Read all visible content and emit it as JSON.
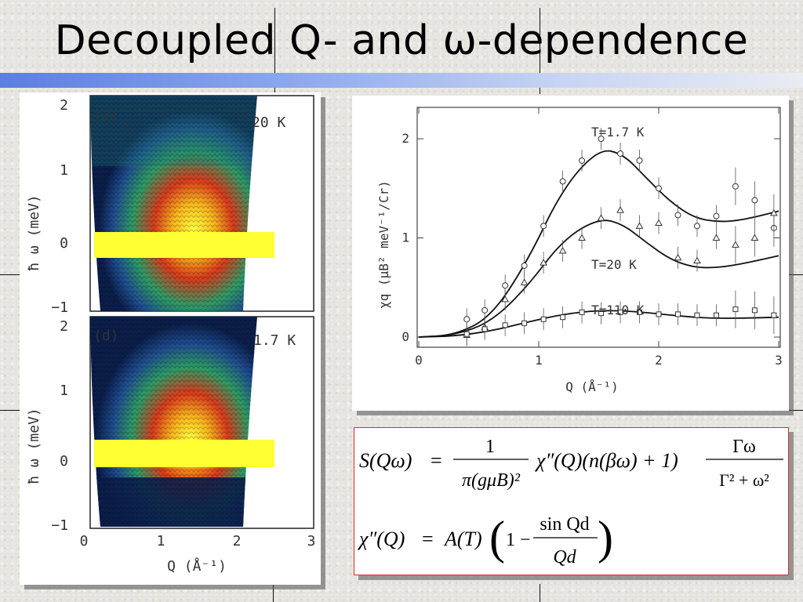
{
  "slide": {
    "title": "Decoupled Q- and ω-dependence"
  },
  "maps": {
    "panel_c": {
      "tag": "(c)",
      "temperature": "20 K"
    },
    "panel_d": {
      "tag": "(d)",
      "temperature": "1.7 K"
    },
    "y_axis_label": "ħ ω (meV)",
    "y_ticks": [
      "2",
      "1",
      "0",
      "−1"
    ],
    "x_axis_label": "Q (Å⁻¹)",
    "x_ticks": [
      "0",
      "1",
      "2",
      "3"
    ],
    "colors": {
      "bg": "#0b1e4a",
      "blue": "#1f4d8f",
      "green": "#2d9a63",
      "red": "#d83a1c",
      "orange": "#f08a1a",
      "yellow": "#ffff33"
    }
  },
  "chart_data": {
    "type": "scatter",
    "ylabel": "χq (μB² meV⁻¹/Cr)",
    "xlabel": "Q (Å⁻¹)",
    "xlim": [
      0,
      3
    ],
    "ylim": [
      0,
      2.3
    ],
    "x_ticks": [
      "0",
      "1",
      "2",
      "3"
    ],
    "y_ticks": [
      "0",
      "1",
      "2"
    ],
    "series": [
      {
        "name": "T=1.7 K",
        "marker": "circle",
        "points": [
          [
            0.4,
            0.18
          ],
          [
            0.55,
            0.27
          ],
          [
            0.72,
            0.52
          ],
          [
            0.88,
            0.72
          ],
          [
            1.04,
            1.12
          ],
          [
            1.2,
            1.57
          ],
          [
            1.36,
            1.78
          ],
          [
            1.52,
            2.0
          ],
          [
            1.68,
            1.85
          ],
          [
            1.84,
            1.78
          ],
          [
            2.0,
            1.5
          ],
          [
            2.16,
            1.23
          ],
          [
            2.32,
            1.12
          ],
          [
            2.48,
            1.22
          ],
          [
            2.64,
            1.52
          ],
          [
            2.8,
            1.38
          ],
          [
            2.96,
            1.1
          ]
        ],
        "fit": [
          [
            0,
            0
          ],
          [
            0.3,
            0.02
          ],
          [
            0.6,
            0.2
          ],
          [
            0.9,
            0.75
          ],
          [
            1.2,
            1.5
          ],
          [
            1.5,
            1.9
          ],
          [
            1.7,
            1.85
          ],
          [
            1.9,
            1.6
          ],
          [
            2.1,
            1.36
          ],
          [
            2.3,
            1.2
          ],
          [
            2.5,
            1.16
          ],
          [
            2.7,
            1.18
          ],
          [
            3.0,
            1.27
          ]
        ]
      },
      {
        "name": "T=20 K",
        "marker": "triangle",
        "points": [
          [
            0.4,
            0.02
          ],
          [
            0.55,
            0.1
          ],
          [
            0.72,
            0.38
          ],
          [
            0.88,
            0.55
          ],
          [
            1.04,
            0.75
          ],
          [
            1.2,
            0.87
          ],
          [
            1.36,
            1.0
          ],
          [
            1.52,
            1.2
          ],
          [
            1.68,
            1.28
          ],
          [
            1.84,
            1.12
          ],
          [
            2.0,
            1.15
          ],
          [
            2.16,
            0.8
          ],
          [
            2.32,
            0.77
          ],
          [
            2.48,
            1.0
          ],
          [
            2.64,
            0.93
          ],
          [
            2.8,
            1.0
          ],
          [
            2.96,
            1.25
          ]
        ],
        "fit": [
          [
            0,
            0
          ],
          [
            0.3,
            0.02
          ],
          [
            0.6,
            0.15
          ],
          [
            0.9,
            0.5
          ],
          [
            1.2,
            0.98
          ],
          [
            1.5,
            1.2
          ],
          [
            1.7,
            1.14
          ],
          [
            1.9,
            0.95
          ],
          [
            2.1,
            0.78
          ],
          [
            2.3,
            0.7
          ],
          [
            2.5,
            0.7
          ],
          [
            2.7,
            0.74
          ],
          [
            3.0,
            0.82
          ]
        ]
      },
      {
        "name": "T=110 K",
        "marker": "square",
        "points": [
          [
            0.4,
            0.03
          ],
          [
            0.55,
            0.08
          ],
          [
            0.72,
            0.12
          ],
          [
            0.88,
            0.14
          ],
          [
            1.04,
            0.18
          ],
          [
            1.2,
            0.2
          ],
          [
            1.36,
            0.25
          ],
          [
            1.52,
            0.24
          ],
          [
            1.68,
            0.25
          ],
          [
            1.84,
            0.25
          ],
          [
            2.0,
            0.23
          ],
          [
            2.16,
            0.23
          ],
          [
            2.32,
            0.22
          ],
          [
            2.48,
            0.22
          ],
          [
            2.64,
            0.28
          ],
          [
            2.8,
            0.27
          ],
          [
            2.96,
            0.22
          ]
        ],
        "fit": [
          [
            0,
            0
          ],
          [
            0.3,
            0.01
          ],
          [
            0.6,
            0.06
          ],
          [
            0.9,
            0.15
          ],
          [
            1.2,
            0.23
          ],
          [
            1.5,
            0.27
          ],
          [
            1.8,
            0.26
          ],
          [
            2.1,
            0.22
          ],
          [
            2.4,
            0.19
          ],
          [
            2.7,
            0.19
          ],
          [
            3.0,
            0.2
          ]
        ]
      }
    ]
  },
  "equations": {
    "eq1_lhs": "S(Qω)",
    "eq1_eq": "=",
    "eq1_num": "1",
    "eq1_den": "π(gμB)²",
    "eq1_mid": "χ″(Q)(n(βω) + 1)",
    "eq1_frac_num": "Γω",
    "eq1_frac_den": "Γ² + ω²",
    "eq2_lhs": "χ″(Q)",
    "eq2_eq": "=",
    "eq2_mid": "A(T)",
    "eq2_one": "1 −",
    "eq2_num": "sin Qd",
    "eq2_den": "Qd",
    "border_color": "#d33030"
  }
}
